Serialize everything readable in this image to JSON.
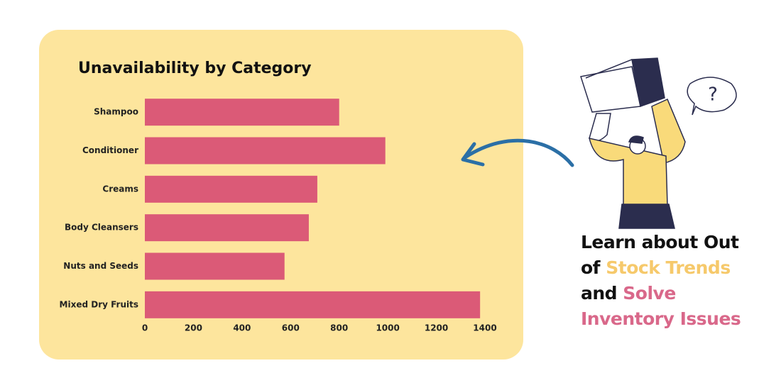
{
  "chart_data": {
    "type": "bar",
    "orientation": "horizontal",
    "title": "Unavailability by Category",
    "categories": [
      "Shampoo",
      "Conditioner",
      "Creams",
      "Body Cleansers",
      "Nuts and Seeds",
      "Mixed Dry Fruits"
    ],
    "values": [
      800,
      990,
      710,
      675,
      575,
      1380
    ],
    "color": "#db5a77",
    "xlim": [
      0,
      1400
    ],
    "xticks": [
      0,
      200,
      400,
      600,
      800,
      1000,
      1200,
      1400
    ],
    "grid": false
  },
  "caption": {
    "lines": [
      [
        {
          "text": "Learn about Out",
          "color": "#111111"
        }
      ],
      [
        {
          "text": "of ",
          "color": "#111111"
        },
        {
          "text": "Stock Trends",
          "color": "#f6c96b"
        }
      ],
      [
        {
          "text": "and ",
          "color": "#111111"
        },
        {
          "text": "Solve",
          "color": "#d9688a"
        }
      ],
      [
        {
          "text": "Inventory Issues",
          "color": "#d9688a"
        }
      ]
    ]
  }
}
